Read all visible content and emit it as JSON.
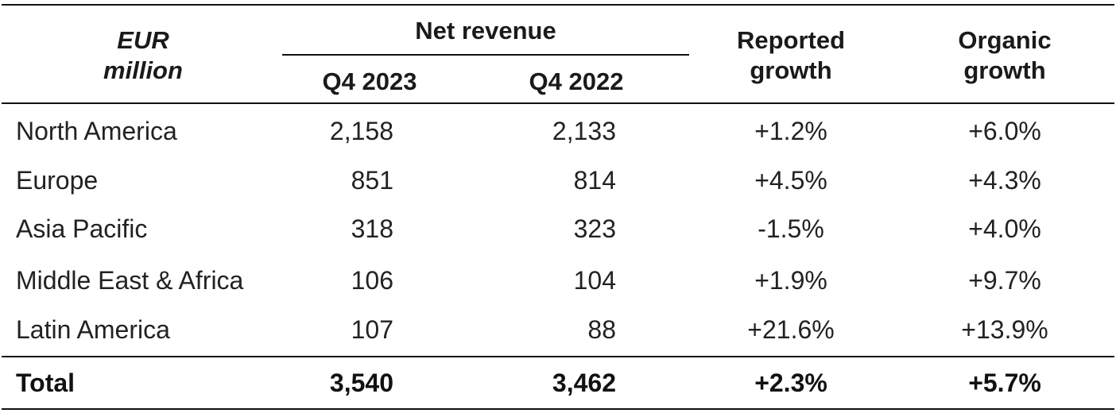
{
  "header": {
    "unit_line1": "EUR",
    "unit_line2": "million",
    "group_label": "Net revenue",
    "col_q4_2023": "Q4 2023",
    "col_q4_2022": "Q4 2022",
    "reported_line1": "Reported",
    "reported_line2": "growth",
    "organic_line1": "Organic",
    "organic_line2": "growth"
  },
  "rows": [
    {
      "region": "North America",
      "q4_2023": "2,158",
      "q4_2022": "2,133",
      "reported": "+1.2%",
      "organic": "+6.0%"
    },
    {
      "region": "Europe",
      "q4_2023": "851",
      "q4_2022": "814",
      "reported": "+4.5%",
      "organic": "+4.3%"
    },
    {
      "region": "Asia Pacific",
      "q4_2023": "318",
      "q4_2022": "323",
      "reported": "-1.5%",
      "organic": "+4.0%"
    },
    {
      "region": "Middle East & Africa",
      "q4_2023": "106",
      "q4_2022": "104",
      "reported": "+1.9%",
      "organic": "+9.7%"
    },
    {
      "region": "Latin America",
      "q4_2023": "107",
      "q4_2022": "88",
      "reported": "+21.6%",
      "organic": "+13.9%"
    }
  ],
  "total": {
    "label": "Total",
    "q4_2023": "3,540",
    "q4_2022": "3,462",
    "reported": "+2.3%",
    "organic": "+5.7%"
  }
}
